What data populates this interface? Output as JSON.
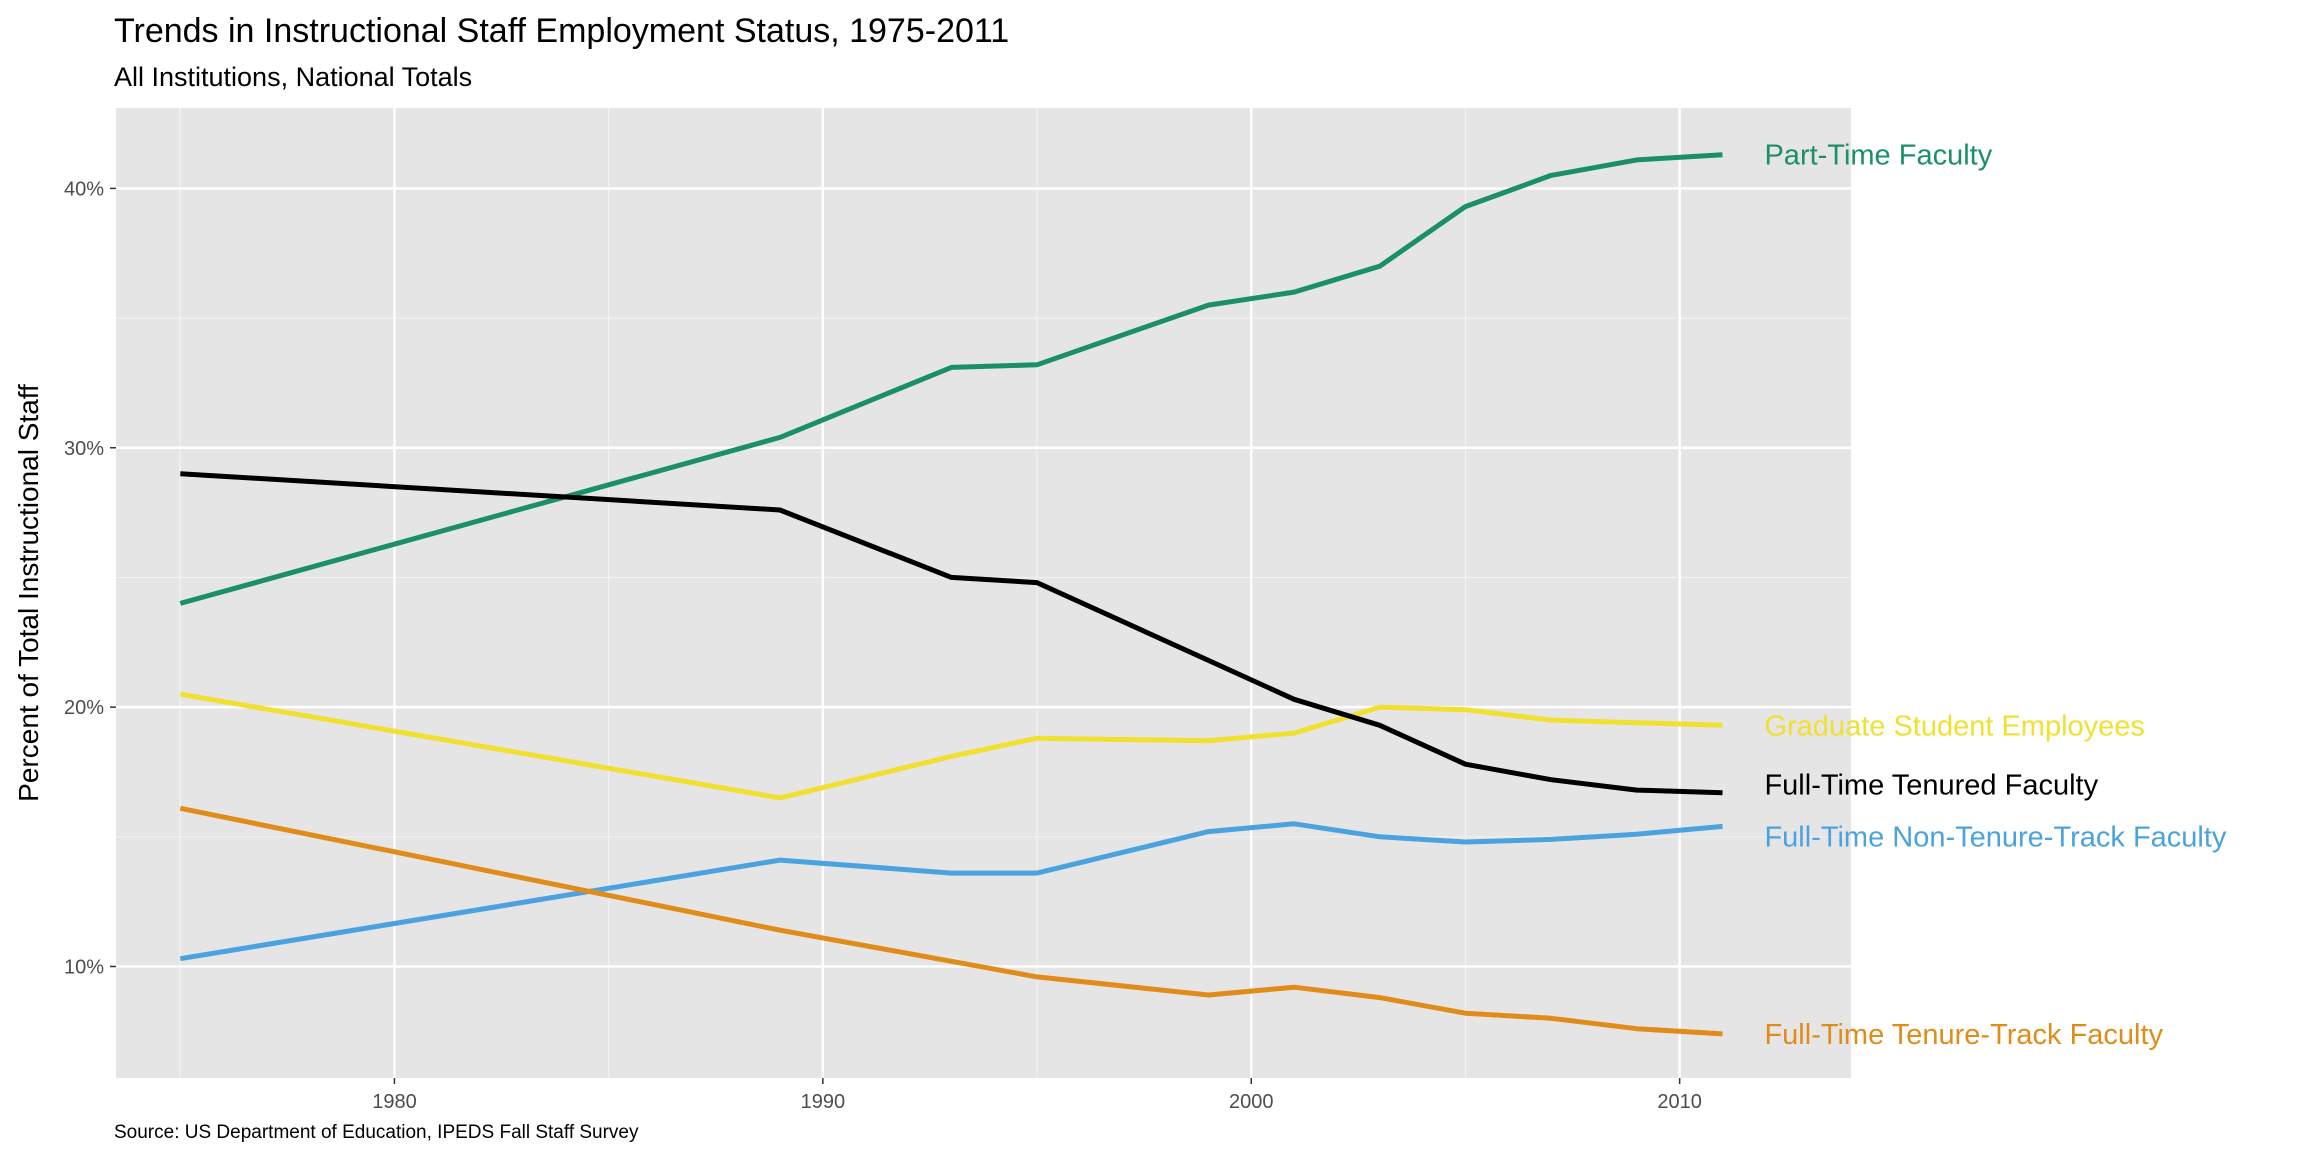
{
  "header": {
    "title": "Trends in Instructional Staff Employment Status, 1975-2011",
    "subtitle": "All Institutions, National Totals"
  },
  "footer": {
    "caption": "Source: US Department of Education, IPEDS Fall Staff Survey"
  },
  "chart_data": {
    "type": "line",
    "title": "Trends in Instructional Staff Employment Status, 1975-2011",
    "subtitle": "All Institutions, National Totals",
    "xlabel": "",
    "ylabel": "Percent of Total Instructional Staff",
    "xlim": [
      1973.5,
      2014
    ],
    "ylim": [
      5.7,
      43.1
    ],
    "xticks": [
      1980,
      1990,
      2000,
      2010
    ],
    "yticks": [
      10,
      20,
      30,
      40
    ],
    "ytick_format": "percent",
    "grid": true,
    "legend": "direct labels at right end of each line",
    "x": [
      1975,
      1989,
      1993,
      1995,
      1999,
      2001,
      2003,
      2005,
      2007,
      2009,
      2011
    ],
    "series": [
      {
        "name": "Part-Time Faculty",
        "color": "#1b9065",
        "values": [
          24.0,
          30.4,
          33.1,
          33.2,
          35.5,
          36.0,
          37.0,
          39.3,
          40.5,
          41.1,
          41.3
        ]
      },
      {
        "name": "Graduate Student Employees",
        "color": "#f0e030",
        "values": [
          20.5,
          16.5,
          18.1,
          18.8,
          18.7,
          19.0,
          20.0,
          19.9,
          19.5,
          19.4,
          19.3
        ]
      },
      {
        "name": "Full-Time Tenured Faculty",
        "color": "#000000",
        "values": [
          29.0,
          27.6,
          25.0,
          24.8,
          21.8,
          20.3,
          19.3,
          17.8,
          17.2,
          16.8,
          16.7
        ]
      },
      {
        "name": "Full-Time Non-Tenure-Track Faculty",
        "color": "#4aa3df",
        "values": [
          10.3,
          14.1,
          13.6,
          13.6,
          15.2,
          15.5,
          15.0,
          14.8,
          14.9,
          15.1,
          15.4
        ]
      },
      {
        "name": "Full-Time Tenure-Track Faculty",
        "color": "#e08c1a",
        "values": [
          16.1,
          11.4,
          10.2,
          9.6,
          8.9,
          9.2,
          8.8,
          8.2,
          8.0,
          7.6,
          7.4
        ]
      }
    ]
  }
}
